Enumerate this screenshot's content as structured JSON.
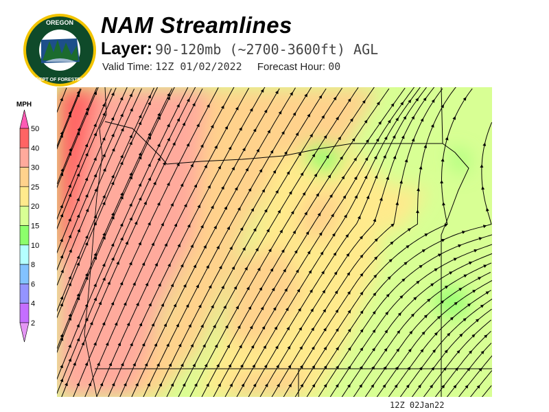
{
  "header": {
    "title": "NAM Streamlines",
    "layer_label": "Layer:",
    "layer_value": "90-120mb (~2700-3600ft) AGL",
    "valid_label": "Valid Time:",
    "valid_value": "12Z 01/02/2022",
    "forecast_label": "Forecast Hour:",
    "forecast_value": "00"
  },
  "logo": {
    "text_top": "OREGON",
    "text_bottom": "DEPARTMENT OF FORESTRY"
  },
  "legend": {
    "unit": "MPH",
    "labels": [
      "50",
      "40",
      "30",
      "25",
      "20",
      "15",
      "10",
      "8",
      "6",
      "4",
      "2"
    ],
    "colors": [
      "#ff6464",
      "#ffaa9c",
      "#ffd28c",
      "#ffea8c",
      "#d8ff94",
      "#8cff6c",
      "#b4ffff",
      "#82c2ff",
      "#9494ff",
      "#c46eff"
    ],
    "over_color": "#ff5ab4",
    "under_color": "#e496f4"
  },
  "map": {
    "base_color": "#d8ff94",
    "stamp": "12Z 02Jan22"
  }
}
